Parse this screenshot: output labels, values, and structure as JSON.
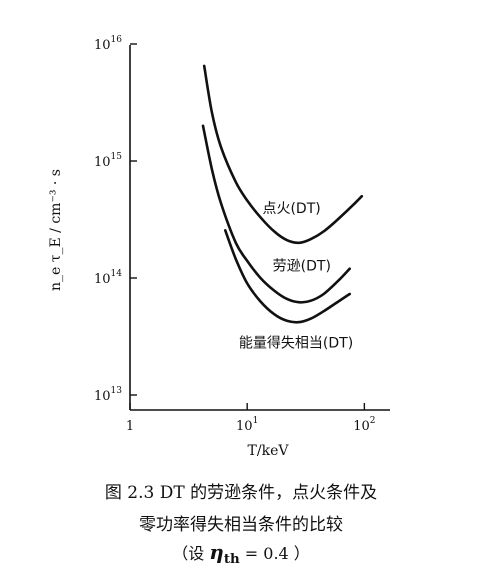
{
  "chart_data": {
    "type": "line",
    "x_scale": "log",
    "y_scale": "log",
    "xlim": [
      1,
      150
    ],
    "ylim": [
      10000000000000.0,
      1e+16
    ],
    "xlabel": "T/keV",
    "ylabel": "n_e τ_E / cm⁻³ · s",
    "grid": false,
    "x_ticks": [
      {
        "value": 1,
        "label": "1"
      },
      {
        "value": 10,
        "label": "10",
        "exp": "1"
      },
      {
        "value": 100,
        "label": "10",
        "exp": "2"
      }
    ],
    "y_ticks": [
      {
        "value": 10000000000000.0,
        "label": "10",
        "exp": "13"
      },
      {
        "value": 100000000000000.0,
        "label": "10",
        "exp": "14"
      },
      {
        "value": 1000000000000000.0,
        "label": "10",
        "exp": "15"
      },
      {
        "value": 1e+16,
        "label": "10",
        "exp": "16"
      }
    ],
    "series": [
      {
        "name": "点火(DT)",
        "x": [
          4.3,
          5,
          6,
          8,
          10,
          13,
          17,
          22,
          28,
          35,
          45,
          60,
          80,
          95
        ],
        "y": [
          6500000000000000.0,
          2600000000000000.0,
          1300000000000000.0,
          660000000000000.0,
          460000000000000.0,
          330000000000000.0,
          250000000000000.0,
          210000000000000.0,
          200000000000000.0,
          215000000000000.0,
          250000000000000.0,
          320000000000000.0,
          420000000000000.0,
          500000000000000.0
        ],
        "label_at": [
          13.5,
          360000000000000.0
        ]
      },
      {
        "name": "劳逊(DT)",
        "x": [
          4.2,
          5,
          6,
          8,
          10,
          13,
          17,
          22,
          28,
          35,
          45,
          60,
          75
        ],
        "y": [
          2000000000000000.0,
          850000000000000.0,
          430000000000000.0,
          200000000000000.0,
          140000000000000.0,
          100000000000000.0,
          78000000000000.0,
          66000000000000.0,
          62000000000000.0,
          64000000000000.0,
          73000000000000.0,
          95000000000000.0,
          120000000000000.0
        ],
        "label_at": [
          16.5,
          116000000000000.0
        ]
      },
      {
        "name": "能量得失相当(DT)",
        "x": [
          6.5,
          8,
          10,
          13,
          17,
          22,
          28,
          35,
          45,
          60,
          75
        ],
        "y": [
          255000000000000.0,
          145000000000000.0,
          90000000000000.0,
          63000000000000.0,
          49000000000000.0,
          43000000000000.0,
          42000000000000.0,
          45000000000000.0,
          52000000000000.0,
          63000000000000.0,
          73000000000000.0
        ],
        "label_at": [
          8.5,
          25500000000000.0
        ]
      }
    ]
  },
  "caption": {
    "line1": "图 2.3   DT 的劳逊条件，点火条件及",
    "line2": "零功率得失相当条件的比较",
    "line3_prefix": "（设 ",
    "line3_symbol": "η",
    "line3_sub": "th",
    "line3_suffix": " = 0.4 ）"
  }
}
